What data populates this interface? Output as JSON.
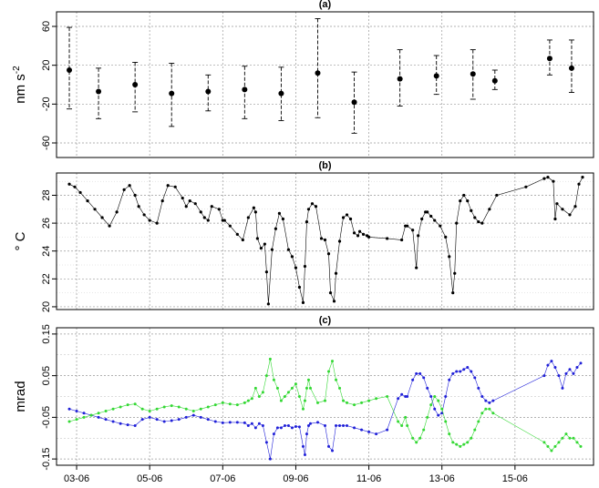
{
  "chart_data": [
    {
      "panel_label": "(a)",
      "type": "scatter",
      "ylabel_main": "nm s",
      "ylabel_sup": "-2",
      "yticks": [
        "60",
        "20",
        "-20",
        "-60"
      ],
      "ylim": [
        -75,
        75
      ],
      "grid": true,
      "points": [
        {
          "x": 2.8,
          "y": 15,
          "err_low": -25,
          "err_high": 59
        },
        {
          "x": 3.6,
          "y": -7,
          "err_low": -35,
          "err_high": 17
        },
        {
          "x": 4.6,
          "y": 0,
          "err_low": -28,
          "err_high": 23
        },
        {
          "x": 5.6,
          "y": -9,
          "err_low": -43,
          "err_high": 22
        },
        {
          "x": 6.6,
          "y": -7,
          "err_low": -27,
          "err_high": 10
        },
        {
          "x": 7.6,
          "y": -5,
          "err_low": -35,
          "err_high": 19
        },
        {
          "x": 8.6,
          "y": -9,
          "err_low": -37,
          "err_high": 18
        },
        {
          "x": 9.6,
          "y": 12,
          "err_low": -34,
          "err_high": 68
        },
        {
          "x": 10.6,
          "y": -18,
          "err_low": -50,
          "err_high": 13
        },
        {
          "x": 11.85,
          "y": 6,
          "err_low": -22,
          "err_high": 36
        },
        {
          "x": 12.85,
          "y": 9,
          "err_low": -10,
          "err_high": 30
        },
        {
          "x": 13.85,
          "y": 11,
          "err_low": -15,
          "err_high": 36
        },
        {
          "x": 14.45,
          "y": 4,
          "err_low": -5,
          "err_high": 15
        },
        {
          "x": 15.95,
          "y": 27,
          "err_low": 10,
          "err_high": 46
        },
        {
          "x": 16.55,
          "y": 17,
          "err_low": -8,
          "err_high": 46
        }
      ]
    },
    {
      "panel_label": "(b)",
      "type": "line",
      "ylabel": "° C",
      "yticks": [
        "28",
        "26",
        "24",
        "22",
        "20"
      ],
      "ylim": [
        19.8,
        29.6
      ],
      "grid": true,
      "series": [
        {
          "color": "#000000",
          "x": [
            2.8,
            2.95,
            3.1,
            3.3,
            3.5,
            3.7,
            3.9,
            4.1,
            4.3,
            4.45,
            4.6,
            4.7,
            4.85,
            5.0,
            5.2,
            5.35,
            5.5,
            5.7,
            5.9,
            6.0,
            6.1,
            6.25,
            6.4,
            6.5,
            6.6,
            6.7,
            6.9,
            7.0,
            7.05,
            7.2,
            7.4,
            7.55,
            7.7,
            7.85,
            7.9,
            7.95,
            8.05,
            8.15,
            8.2,
            8.25,
            8.35,
            8.45,
            8.55,
            8.65,
            8.8,
            8.9,
            9.0,
            9.1,
            9.2,
            9.25,
            9.3,
            9.35,
            9.45,
            9.55,
            9.7,
            9.8,
            9.9,
            9.95,
            10.05,
            10.1,
            10.2,
            10.3,
            10.4,
            10.5,
            10.6,
            10.7,
            10.75,
            10.85,
            10.95,
            11.0,
            11.5,
            11.9,
            12.0,
            12.05,
            12.2,
            12.3,
            12.35,
            12.45,
            12.55,
            12.6,
            12.7,
            12.8,
            12.95,
            13.1,
            13.2,
            13.3,
            13.35,
            13.4,
            13.5,
            13.6,
            13.7,
            13.8,
            13.9,
            14.0,
            14.1,
            14.3,
            14.5,
            15.3,
            15.8,
            15.9,
            16.05,
            16.1,
            16.15,
            16.3,
            16.5,
            16.65,
            16.75,
            16.85
          ],
          "y": [
            28.8,
            28.6,
            28.2,
            27.6,
            27.0,
            26.4,
            25.8,
            26.8,
            28.4,
            28.7,
            28.0,
            27.2,
            26.6,
            26.2,
            26.0,
            27.6,
            28.7,
            28.6,
            27.8,
            27.2,
            27.6,
            27.4,
            26.8,
            26.4,
            26.2,
            27.2,
            27.0,
            26.2,
            26.2,
            25.8,
            25.2,
            24.8,
            26.4,
            27.1,
            26.8,
            24.9,
            24.2,
            24.5,
            22.5,
            20.2,
            24.1,
            25.6,
            26.7,
            26.3,
            24.1,
            23.6,
            22.8,
            21.4,
            20.3,
            22.9,
            26.1,
            27.0,
            27.4,
            27.2,
            24.9,
            24.8,
            23.8,
            21.0,
            20.4,
            22.4,
            24.7,
            26.4,
            26.6,
            26.3,
            25.3,
            25.1,
            25.4,
            25.2,
            25.1,
            25.0,
            24.9,
            24.8,
            25.8,
            25.8,
            25.5,
            22.8,
            25.1,
            26.3,
            26.8,
            26.8,
            26.5,
            26.2,
            25.8,
            25.0,
            23.6,
            21.0,
            22.4,
            26.0,
            27.6,
            28.0,
            27.6,
            26.9,
            26.4,
            26.1,
            26.0,
            27.0,
            28.0,
            28.6,
            29.2,
            29.3,
            29.0,
            26.3,
            27.4,
            27.0,
            26.6,
            27.2,
            28.8,
            29.3
          ]
        }
      ]
    },
    {
      "panel_label": "(c)",
      "type": "scatter",
      "ylabel": "mrad",
      "yticks": [
        "0.15",
        "0.05",
        "-0.05",
        "-0.15"
      ],
      "ylim": [
        -0.165,
        0.165
      ],
      "grid": true,
      "xtick_labels": [
        "03-06",
        "05-06",
        "07-06",
        "09-06",
        "11-06",
        "13-06",
        "15-06"
      ],
      "series": [
        {
          "color": "#2020d8",
          "x": [
            2.8,
            3.0,
            3.2,
            3.4,
            3.6,
            3.8,
            4.0,
            4.2,
            4.4,
            4.6,
            4.8,
            5.0,
            5.2,
            5.4,
            5.6,
            5.8,
            6.0,
            6.2,
            6.4,
            6.6,
            6.8,
            7.0,
            7.2,
            7.4,
            7.6,
            7.7,
            7.8,
            7.9,
            8.0,
            8.1,
            8.2,
            8.3,
            8.4,
            8.5,
            8.6,
            8.7,
            8.8,
            8.9,
            9.0,
            9.1,
            9.2,
            9.25,
            9.3,
            9.35,
            9.4,
            9.6,
            9.8,
            9.9,
            10.0,
            10.1,
            10.2,
            10.3,
            10.4,
            10.6,
            10.8,
            11.0,
            11.2,
            11.5,
            11.8,
            11.9,
            12.0,
            12.05,
            12.2,
            12.3,
            12.4,
            12.5,
            12.6,
            12.7,
            12.8,
            12.9,
            13.0,
            13.1,
            13.2,
            13.3,
            13.4,
            13.5,
            13.6,
            13.7,
            13.8,
            13.9,
            14.0,
            14.1,
            14.2,
            14.3,
            14.4,
            15.8,
            15.9,
            16.0,
            16.1,
            16.2,
            16.3,
            16.4,
            16.5,
            16.6,
            16.7,
            16.8
          ],
          "y": [
            -0.03,
            -0.035,
            -0.04,
            -0.045,
            -0.05,
            -0.055,
            -0.06,
            -0.065,
            -0.068,
            -0.07,
            -0.055,
            -0.05,
            -0.055,
            -0.06,
            -0.058,
            -0.055,
            -0.05,
            -0.045,
            -0.05,
            -0.055,
            -0.06,
            -0.063,
            -0.062,
            -0.062,
            -0.063,
            -0.07,
            -0.065,
            -0.075,
            -0.065,
            -0.07,
            -0.11,
            -0.15,
            -0.09,
            -0.075,
            -0.075,
            -0.07,
            -0.07,
            -0.075,
            -0.072,
            -0.073,
            -0.12,
            -0.14,
            -0.09,
            -0.07,
            -0.065,
            -0.062,
            -0.07,
            -0.12,
            -0.13,
            -0.07,
            -0.07,
            -0.07,
            -0.07,
            -0.075,
            -0.08,
            -0.085,
            -0.09,
            -0.08,
            -0.005,
            0.005,
            0.0,
            0.0,
            0.04,
            0.055,
            0.055,
            0.045,
            0.02,
            0.0,
            -0.03,
            -0.045,
            -0.04,
            0.0,
            0.04,
            0.055,
            0.06,
            0.06,
            0.065,
            0.07,
            0.06,
            0.045,
            0.02,
            0.0,
            -0.01,
            -0.015,
            -0.01,
            0.05,
            0.075,
            0.085,
            0.07,
            0.05,
            0.02,
            0.055,
            0.065,
            0.055,
            0.07,
            0.08
          ]
        },
        {
          "color": "#33d833",
          "x": [
            2.8,
            3.0,
            3.2,
            3.4,
            3.6,
            3.8,
            4.0,
            4.2,
            4.4,
            4.6,
            4.8,
            5.0,
            5.2,
            5.4,
            5.6,
            5.8,
            6.0,
            6.2,
            6.4,
            6.6,
            6.8,
            7.0,
            7.2,
            7.4,
            7.6,
            7.7,
            7.8,
            7.9,
            8.0,
            8.1,
            8.2,
            8.3,
            8.4,
            8.5,
            8.6,
            8.7,
            8.8,
            8.9,
            9.0,
            9.1,
            9.2,
            9.25,
            9.3,
            9.35,
            9.4,
            9.6,
            9.8,
            9.9,
            10.0,
            10.1,
            10.2,
            10.3,
            10.4,
            10.6,
            10.8,
            11.0,
            11.2,
            11.5,
            11.8,
            11.9,
            12.0,
            12.05,
            12.2,
            12.3,
            12.4,
            12.5,
            12.6,
            12.7,
            12.8,
            12.9,
            13.0,
            13.1,
            13.2,
            13.3,
            13.4,
            13.5,
            13.6,
            13.7,
            13.8,
            13.9,
            14.0,
            14.1,
            14.2,
            14.3,
            14.4,
            15.8,
            15.9,
            16.0,
            16.1,
            16.2,
            16.3,
            16.4,
            16.5,
            16.6,
            16.7,
            16.8
          ],
          "y": [
            -0.06,
            -0.055,
            -0.05,
            -0.045,
            -0.04,
            -0.035,
            -0.03,
            -0.025,
            -0.02,
            -0.018,
            -0.03,
            -0.035,
            -0.03,
            -0.025,
            -0.022,
            -0.025,
            -0.03,
            -0.035,
            -0.03,
            -0.025,
            -0.02,
            -0.015,
            -0.018,
            -0.02,
            -0.015,
            -0.01,
            -0.005,
            0.02,
            0.0,
            0.01,
            0.05,
            0.09,
            0.04,
            0.02,
            -0.01,
            0.0,
            0.01,
            0.02,
            0.03,
            0.0,
            -0.03,
            -0.01,
            0.02,
            0.04,
            0.02,
            -0.015,
            -0.01,
            0.06,
            0.085,
            0.04,
            0.02,
            -0.01,
            -0.015,
            -0.02,
            -0.015,
            -0.01,
            -0.005,
            0.0,
            -0.06,
            -0.07,
            -0.05,
            -0.07,
            -0.1,
            -0.11,
            -0.1,
            -0.08,
            -0.05,
            -0.02,
            0.0,
            -0.01,
            -0.03,
            -0.06,
            -0.09,
            -0.11,
            -0.115,
            -0.12,
            -0.115,
            -0.11,
            -0.1,
            -0.08,
            -0.06,
            -0.04,
            -0.03,
            -0.03,
            -0.04,
            -0.11,
            -0.12,
            -0.13,
            -0.12,
            -0.11,
            -0.1,
            -0.09,
            -0.1,
            -0.1,
            -0.11,
            -0.12
          ]
        }
      ]
    }
  ],
  "x_axis": {
    "xlim": [
      2.45,
      17.15
    ],
    "tick_positions": [
      3,
      5,
      7,
      9,
      11,
      13,
      15
    ]
  }
}
